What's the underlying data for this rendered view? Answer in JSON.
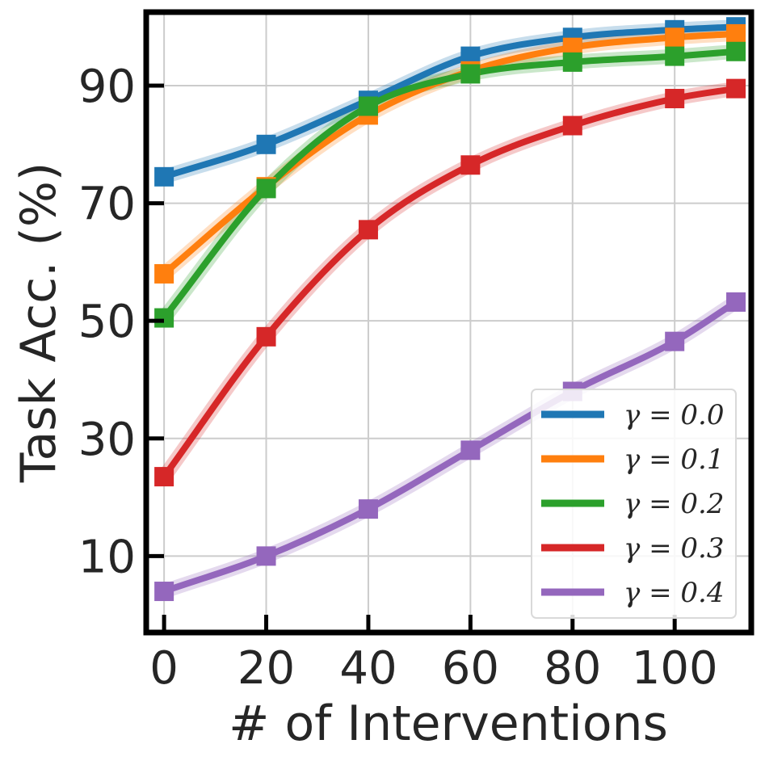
{
  "chart_data": {
    "type": "line",
    "title": "",
    "xlabel": "# of Interventions",
    "ylabel": "Task Acc. (%)",
    "xlim": [
      -3.5,
      115
    ],
    "ylim": [
      -3,
      102.5
    ],
    "xticks": [
      0,
      20,
      40,
      60,
      80,
      100
    ],
    "yticks": [
      10,
      30,
      50,
      70,
      90
    ],
    "grid": true,
    "legend_position": "bottom-right",
    "x": [
      0,
      20,
      40,
      60,
      80,
      100,
      112
    ],
    "series": [
      {
        "name": "γ = 0.0",
        "color": "#1f77b4",
        "values": [
          74.5,
          80,
          87.5,
          95,
          98.2,
          99.5,
          100
        ]
      },
      {
        "name": "γ = 0.1",
        "color": "#ff7f0e",
        "values": [
          58,
          72.8,
          85,
          92.5,
          96.5,
          98.2,
          98.8
        ]
      },
      {
        "name": "γ = 0.2",
        "color": "#2ca02c",
        "values": [
          50.5,
          72.5,
          86.5,
          92,
          94,
          95,
          95.8
        ]
      },
      {
        "name": "γ = 0.3",
        "color": "#d62728",
        "values": [
          23.5,
          47.3,
          65.5,
          76.5,
          83.2,
          87.8,
          89.5
        ]
      },
      {
        "name": "γ = 0.4",
        "color": "#9467bd",
        "values": [
          4,
          10,
          18,
          28,
          38,
          46.5,
          53.2
        ]
      }
    ]
  }
}
